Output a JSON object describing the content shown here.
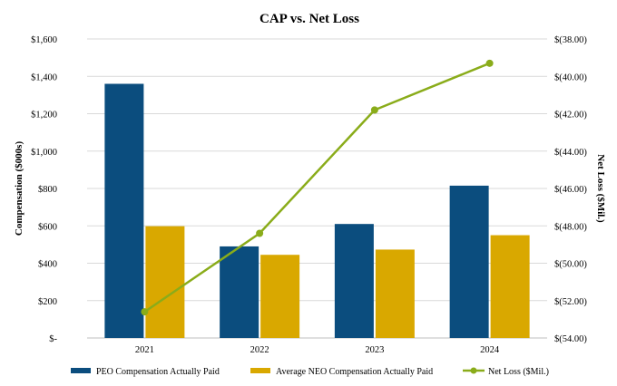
{
  "chart_data": {
    "type": "bar+line",
    "title": "CAP vs. Net Loss",
    "categories": [
      "2021",
      "2022",
      "2023",
      "2024"
    ],
    "ylabel_left": "Compensation ($000s)",
    "ylabel_right": "Net Loss ($Mil.)",
    "ylim_left": [
      0,
      1600
    ],
    "ylim_right": [
      -54,
      -38
    ],
    "left_ticks": [
      "$-",
      "$200",
      "$400",
      "$600",
      "$800",
      "$1,000",
      "$1,200",
      "$1,400",
      "$1,600"
    ],
    "right_ticks": [
      "$(54.00)",
      "$(52.00)",
      "$(50.00)",
      "$(48.00)",
      "$(46.00)",
      "$(44.00)",
      "$(42.00)",
      "$(40.00)",
      "$(38.00)"
    ],
    "grid": true,
    "legend_position": "bottom",
    "series": [
      {
        "name": "PEO Compensation Actually Paid",
        "type": "bar",
        "axis": "left",
        "color": "#0b4d7e",
        "values": [
          1360,
          490,
          610,
          815
        ]
      },
      {
        "name": "Average NEO Compensation Actually Paid",
        "type": "bar",
        "axis": "left",
        "color": "#d9a800",
        "values": [
          598,
          445,
          473,
          550
        ]
      },
      {
        "name": "Net Loss ($Mil.)",
        "type": "line",
        "axis": "right",
        "color": "#8aac1a",
        "values": [
          -52.6,
          -48.4,
          -41.8,
          -39.3
        ]
      }
    ]
  }
}
